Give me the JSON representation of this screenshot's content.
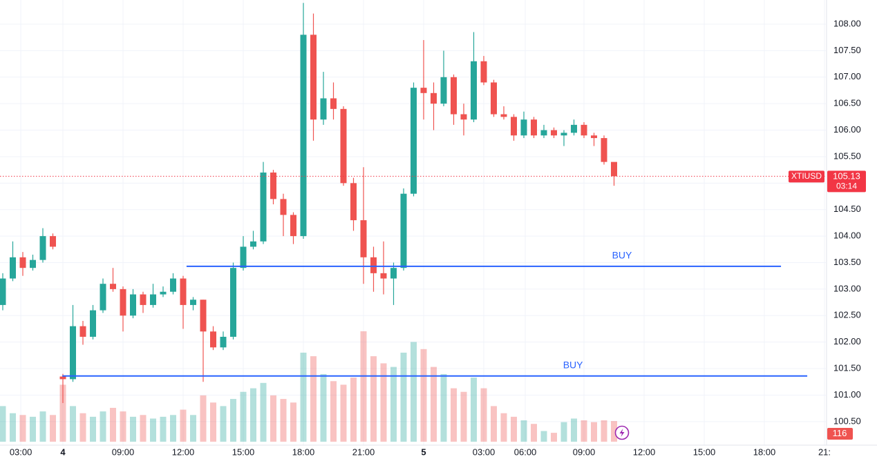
{
  "chart_data": {
    "type": "candlestick",
    "symbol": "XTIUSD",
    "countdown": "03:14",
    "x": [
      0,
      0.5,
      1,
      1.5,
      2,
      2.5,
      3,
      3.5,
      4,
      4.5,
      5,
      5.5,
      6,
      6.5,
      7,
      7.5,
      8,
      8.5,
      9,
      9.5,
      10,
      10.5,
      11,
      11.5,
      12,
      12.5,
      13,
      13.5,
      14,
      14.5,
      15,
      15.5,
      16,
      16.5,
      17,
      17.5,
      18,
      18.5,
      19,
      19.5,
      20,
      20.5,
      21,
      21.5,
      22,
      22.5,
      23,
      23.5,
      24,
      24.5,
      25,
      25.5,
      26,
      26.5,
      27,
      27.5,
      28,
      28.5,
      29,
      29.5,
      30,
      30.5
    ],
    "open": [
      102.7,
      103.2,
      103.6,
      103.4,
      103.55,
      104.0,
      101.35,
      101.3,
      102.3,
      102.1,
      102.6,
      103.1,
      103.0,
      102.5,
      102.9,
      102.7,
      102.9,
      102.95,
      103.2,
      102.7,
      102.8,
      102.2,
      101.9,
      102.1,
      103.4,
      103.8,
      103.9,
      105.2,
      104.7,
      104.4,
      104.0,
      107.8,
      106.2,
      106.6,
      106.4,
      105.0,
      104.3,
      103.6,
      103.3,
      103.2,
      103.4,
      104.8,
      106.8,
      106.7,
      106.5,
      107.0,
      106.3,
      106.2,
      107.3,
      106.9,
      106.3,
      106.25,
      105.9,
      106.2,
      105.9,
      106.0,
      105.9,
      105.95,
      106.1,
      105.9,
      105.85,
      105.4
    ],
    "high": [
      103.3,
      103.9,
      103.7,
      103.65,
      104.15,
      104.05,
      101.4,
      102.7,
      102.4,
      102.7,
      103.2,
      103.4,
      103.05,
      103.0,
      102.95,
      103.1,
      103.05,
      103.3,
      103.25,
      102.85,
      102.8,
      102.3,
      102.2,
      103.5,
      104.0,
      104.1,
      105.4,
      105.25,
      104.8,
      104.45,
      108.4,
      108.2,
      107.1,
      106.9,
      106.45,
      105.1,
      105.3,
      103.8,
      103.9,
      103.5,
      104.9,
      106.9,
      107.7,
      106.9,
      107.5,
      107.05,
      106.5,
      107.85,
      107.4,
      106.95,
      106.45,
      106.3,
      106.35,
      106.25,
      106.1,
      106.05,
      106.0,
      106.2,
      106.15,
      105.95,
      105.9,
      105.35
    ],
    "low": [
      102.6,
      103.15,
      103.25,
      103.35,
      103.5,
      103.75,
      100.85,
      101.25,
      101.95,
      102.05,
      102.55,
      102.95,
      102.2,
      102.45,
      102.55,
      102.65,
      102.85,
      102.9,
      102.25,
      102.6,
      101.25,
      101.85,
      101.85,
      102.05,
      103.35,
      103.75,
      103.85,
      104.6,
      104.0,
      103.85,
      103.95,
      105.8,
      106.1,
      106.2,
      104.95,
      104.1,
      103.1,
      102.95,
      102.9,
      102.7,
      103.35,
      104.75,
      106.2,
      106.0,
      106.45,
      106.1,
      105.9,
      106.15,
      106.85,
      106.25,
      106.2,
      105.8,
      105.85,
      105.85,
      105.85,
      105.85,
      105.7,
      105.9,
      105.85,
      105.7,
      105.35,
      104.95
    ],
    "close": [
      103.2,
      103.6,
      103.4,
      103.55,
      104.0,
      103.8,
      101.3,
      102.3,
      102.1,
      102.6,
      103.1,
      103.0,
      102.5,
      102.9,
      102.7,
      102.9,
      102.95,
      103.2,
      102.7,
      102.8,
      102.2,
      101.9,
      102.1,
      103.4,
      103.8,
      103.9,
      105.2,
      104.7,
      104.4,
      104.0,
      107.8,
      106.2,
      106.6,
      106.4,
      105.0,
      104.3,
      103.6,
      103.3,
      103.2,
      103.4,
      104.8,
      106.8,
      106.7,
      106.5,
      107.0,
      106.3,
      106.2,
      107.3,
      106.9,
      106.3,
      106.25,
      105.9,
      106.2,
      105.9,
      106.0,
      105.9,
      105.95,
      106.1,
      105.9,
      105.85,
      105.4,
      105.13
    ],
    "volume": [
      200,
      160,
      150,
      140,
      170,
      150,
      320,
      200,
      160,
      140,
      170,
      190,
      170,
      140,
      150,
      130,
      140,
      150,
      180,
      150,
      260,
      220,
      200,
      240,
      280,
      300,
      330,
      260,
      240,
      220,
      500,
      480,
      380,
      340,
      320,
      360,
      620,
      480,
      440,
      420,
      500,
      560,
      520,
      420,
      380,
      300,
      280,
      360,
      300,
      200,
      160,
      140,
      120,
      100,
      60,
      50,
      110,
      130,
      120,
      110,
      120,
      116
    ],
    "up_color": "#26a69a",
    "down_color": "#ef5350",
    "price_line_color": "#f23645",
    "level_color": "#2962ff",
    "xlim": [
      -0.138,
      41.069
    ],
    "ylim": [
      100.12,
      108.456
    ],
    "volume_ylim": [
      0,
      2480
    ],
    "grid": true,
    "yticks": [
      {
        "value": 100.5,
        "label": "100.50"
      },
      {
        "value": 101,
        "label": "101.00"
      },
      {
        "value": 101.5,
        "label": "101.50"
      },
      {
        "value": 102,
        "label": "102.00"
      },
      {
        "value": 102.5,
        "label": "102.50"
      },
      {
        "value": 103,
        "label": "103.00"
      },
      {
        "value": 103.5,
        "label": "103.50"
      },
      {
        "value": 104,
        "label": "104.00"
      },
      {
        "value": 104.5,
        "label": "104.50"
      },
      {
        "value": 105,
        "label": "105.00"
      },
      {
        "value": 105.5,
        "label": "105.50"
      },
      {
        "value": 106,
        "label": "106.00"
      },
      {
        "value": 106.5,
        "label": "106.50"
      },
      {
        "value": 107,
        "label": "107.00"
      },
      {
        "value": 107.5,
        "label": "107.50"
      },
      {
        "value": 108,
        "label": "108.00"
      }
    ],
    "xticks": [
      {
        "value": 0.9,
        "label": "03:00"
      },
      {
        "value": 3,
        "label": "4"
      },
      {
        "value": 6,
        "label": "09:00"
      },
      {
        "value": 9,
        "label": "12:00"
      },
      {
        "value": 12,
        "label": "15:00"
      },
      {
        "value": 15,
        "label": "18:00"
      },
      {
        "value": 18,
        "label": "21:00"
      },
      {
        "value": 21,
        "label": "5"
      },
      {
        "value": 24,
        "label": "03:00"
      },
      {
        "value": 26.07,
        "label": "06:00"
      },
      {
        "value": 29,
        "label": "09:00"
      },
      {
        "value": 32,
        "label": "12:00"
      },
      {
        "value": 35,
        "label": "15:00"
      },
      {
        "value": 38,
        "label": "18:00"
      },
      {
        "value": 41,
        "label": "21:"
      }
    ],
    "last_price": 105.13,
    "levels": [
      {
        "label": "BUY",
        "value": 103.43,
        "x_range": [
          9.17,
          38.83
        ]
      },
      {
        "label": "BUY",
        "value": 101.36,
        "x_range": [
          2.97,
          40.14
        ]
      }
    ]
  }
}
